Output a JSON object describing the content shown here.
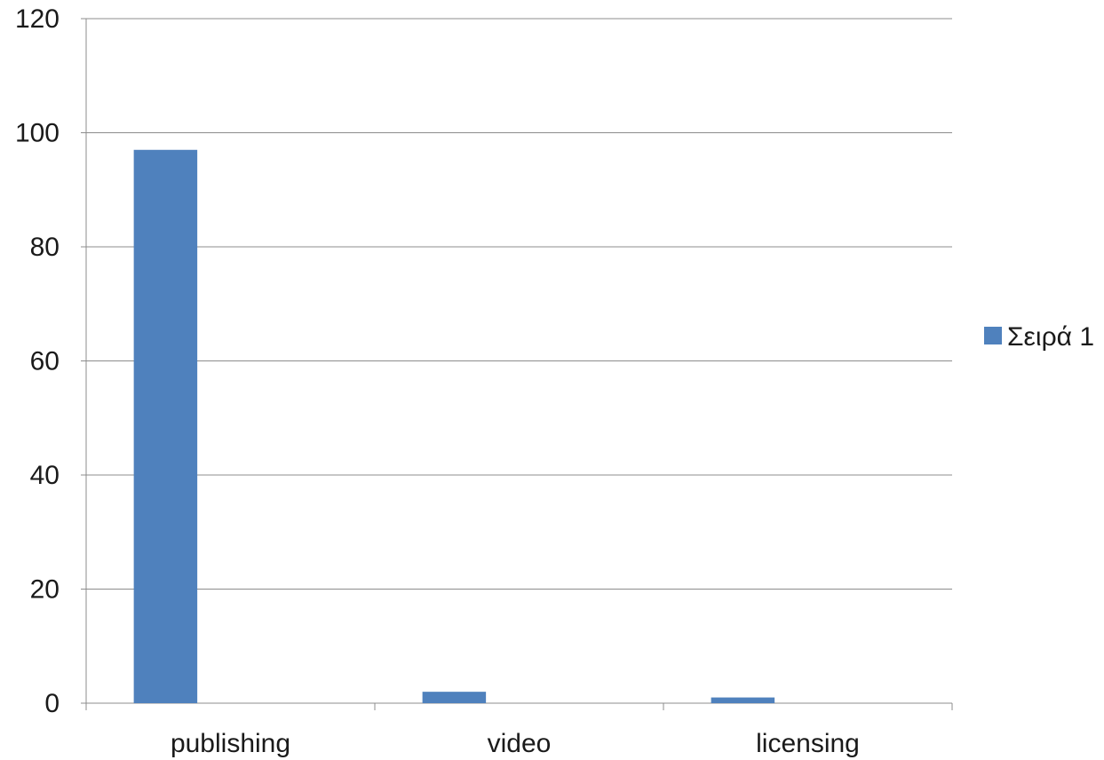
{
  "chart_data": {
    "type": "bar",
    "categories": [
      "publishing",
      "video",
      "licensing"
    ],
    "series": [
      {
        "name": "Σειρά 1",
        "values": [
          97,
          2,
          1
        ],
        "color": "#4f81bd"
      }
    ],
    "ylim": [
      0,
      120
    ],
    "yticks": [
      0,
      20,
      40,
      60,
      80,
      100,
      120
    ],
    "grid": true,
    "legend_position": "right"
  }
}
